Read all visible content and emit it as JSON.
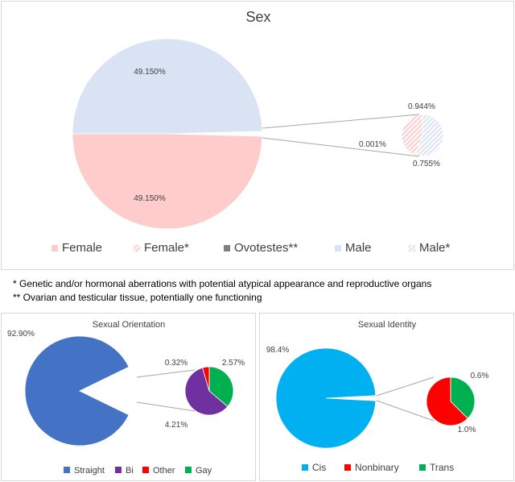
{
  "chart_data": [
    {
      "type": "pie",
      "variant": "pie-of-pie",
      "title": "Sex",
      "main_slices": [
        {
          "label": "Female",
          "value": 49.15,
          "display": "49.150%",
          "color": "#ffcccc"
        },
        {
          "label": "Male",
          "value": 49.15,
          "display": "49.150%",
          "color": "#dae3f3"
        }
      ],
      "secondary_slices": [
        {
          "label": "Male*",
          "value": 0.944,
          "display": "0.944%",
          "color": "#dae3f3",
          "pattern": "hatched"
        },
        {
          "label": "Ovotestes**",
          "value": 0.001,
          "display": "0.001%",
          "color": "#7f7f7f"
        },
        {
          "label": "Female*",
          "value": 0.755,
          "display": "0.755%",
          "color": "#ffcccc",
          "pattern": "hatched"
        }
      ],
      "legend": [
        {
          "label": "Female",
          "color": "#ffcccc"
        },
        {
          "label": "Female*",
          "color": "#ffcccc",
          "pattern": "hatched"
        },
        {
          "label": "Ovotestes**",
          "color": "#7f7f7f"
        },
        {
          "label": "Male",
          "color": "#dae3f3"
        },
        {
          "label": "Male*",
          "color": "#dae3f3",
          "pattern": "hatched"
        }
      ],
      "legend_position": "bottom"
    },
    {
      "type": "pie",
      "variant": "pie-of-pie",
      "title": "Sexual Orientation",
      "main_slices": [
        {
          "label": "Straight",
          "value": 92.9,
          "display": "92.90%",
          "color": "#4472c4"
        }
      ],
      "secondary_slices": [
        {
          "label": "Gay",
          "value": 2.57,
          "display": "2.57%",
          "color": "#00b050"
        },
        {
          "label": "Bi",
          "value": 4.21,
          "display": "4.21%",
          "color": "#7030a0"
        },
        {
          "label": "Other",
          "value": 0.32,
          "display": "0.32%",
          "color": "#ff0000"
        }
      ],
      "legend": [
        {
          "label": "Straight",
          "color": "#4472c4"
        },
        {
          "label": "Bi",
          "color": "#7030a0"
        },
        {
          "label": "Other",
          "color": "#ff0000"
        },
        {
          "label": "Gay",
          "color": "#00b050"
        }
      ],
      "legend_position": "bottom"
    },
    {
      "type": "pie",
      "variant": "pie-of-pie",
      "title": "Sexual Identity",
      "main_slices": [
        {
          "label": "Cis",
          "value": 98.4,
          "display": "98.4%",
          "color": "#00b0f0"
        }
      ],
      "secondary_slices": [
        {
          "label": "Trans",
          "value": 0.6,
          "display": "0.6%",
          "color": "#00b050"
        },
        {
          "label": "Nonbinary",
          "value": 1.0,
          "display": "1.0%",
          "color": "#ff0000"
        }
      ],
      "legend": [
        {
          "label": "Cis",
          "color": "#00b0f0"
        },
        {
          "label": "Nonbinary",
          "color": "#ff0000"
        },
        {
          "label": "Trans",
          "color": "#00b050"
        }
      ],
      "legend_position": "bottom"
    }
  ],
  "footnotes": [
    "* Genetic and/or hormonal aberrations with potential atypical appearance and reproductive organs",
    "** Ovarian and testicular tissue, potentially one functioning"
  ]
}
